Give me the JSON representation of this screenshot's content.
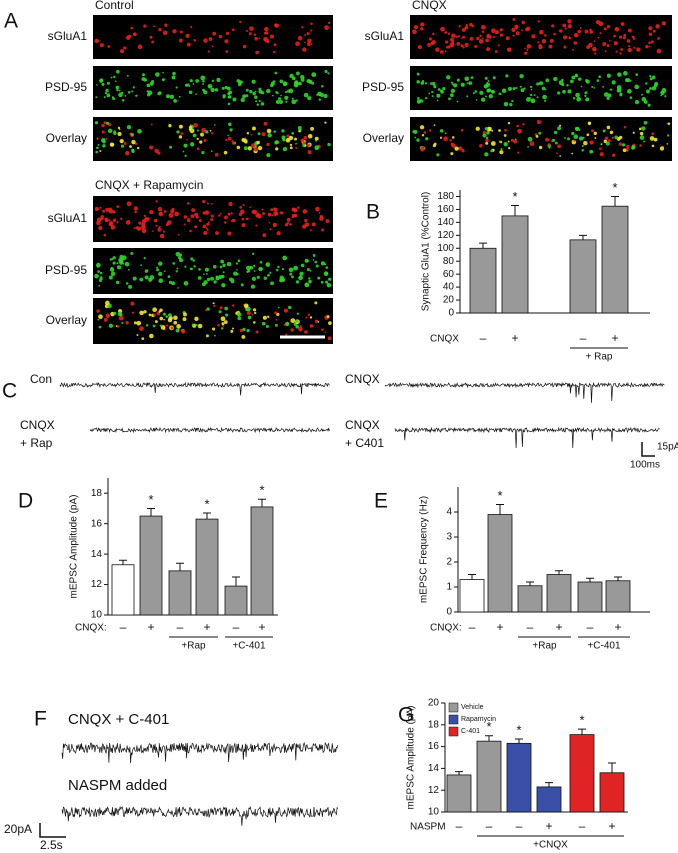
{
  "panel_letters": [
    "A",
    "B",
    "C",
    "D",
    "E",
    "F",
    "G"
  ],
  "panel_a": {
    "conditions": [
      {
        "title": "Control",
        "rows": [
          "sGluA1",
          "PSD-95",
          "Overlay"
        ]
      },
      {
        "title": "CNQX",
        "rows": [
          "sGluA1",
          "PSD-95",
          "Overlay"
        ]
      },
      {
        "title": "CNQX + Rapamycin",
        "rows": [
          "sGluA1",
          "PSD-95",
          "Overlay"
        ]
      }
    ]
  },
  "panel_c": {
    "traces": [
      [
        "Con"
      ],
      [
        "CNQX"
      ],
      [
        "CNQX",
        "+ Rap"
      ],
      [
        "CNQX",
        "+ C401"
      ]
    ],
    "scale_y": "15pA",
    "scale_x": "100ms"
  },
  "panel_f": {
    "traces": [
      "CNQX + C-401",
      "NASPM added"
    ],
    "scale_y": "20pA",
    "scale_x": "2.5s"
  },
  "chart_data": [
    {
      "type": "bar",
      "y_label": "Synaptic GluA1 (%Control)",
      "x_label": "CNQX",
      "categories": [
        "–",
        "+",
        "–",
        "+"
      ],
      "values": [
        100,
        150,
        113,
        165
      ],
      "errors": [
        8,
        16,
        7,
        15
      ],
      "stars": [
        null,
        "*",
        null,
        "*"
      ],
      "colors": [
        "#999999",
        "#999999",
        "#999999",
        "#999999"
      ],
      "bracket_labels": [
        "+ Rap"
      ],
      "ylim": [
        0,
        190
      ],
      "yticks": [
        0,
        20,
        40,
        60,
        80,
        100,
        120,
        140,
        160,
        180
      ]
    },
    {
      "type": "bar",
      "y_label": "mEPSC Amplitude (pA)",
      "x_label": "CNQX:",
      "categories": [
        "–",
        "+",
        "–",
        "+",
        "–",
        "+"
      ],
      "values": [
        13.3,
        16.5,
        12.9,
        16.3,
        11.9,
        17.1
      ],
      "errors": [
        0.3,
        0.5,
        0.5,
        0.4,
        0.6,
        0.5
      ],
      "stars": [
        null,
        "*",
        null,
        "*",
        null,
        "*"
      ],
      "colors": [
        "#ffffff",
        "#999999",
        "#999999",
        "#999999",
        "#999999",
        "#999999"
      ],
      "bracket_labels": [
        "+Rap",
        "+C-401"
      ],
      "ylim": [
        10,
        19
      ],
      "yticks": [
        10,
        12,
        14,
        16,
        18
      ]
    },
    {
      "type": "bar",
      "y_label": "mEPSC Frequency (Hz)",
      "x_label": "CNQX:",
      "categories": [
        "–",
        "+",
        "–",
        "+",
        "–",
        "+"
      ],
      "values": [
        1.3,
        3.9,
        1.05,
        1.5,
        1.2,
        1.25
      ],
      "errors": [
        0.2,
        0.4,
        0.15,
        0.15,
        0.15,
        0.15
      ],
      "stars": [
        null,
        "*",
        null,
        null,
        null,
        null
      ],
      "colors": [
        "#ffffff",
        "#999999",
        "#999999",
        "#999999",
        "#999999",
        "#999999"
      ],
      "bracket_labels": [
        "+Rap",
        "+C-401"
      ],
      "ylim": [
        0,
        5
      ],
      "yticks": [
        0,
        1,
        2,
        3,
        4
      ]
    },
    {
      "type": "bar",
      "y_label": "mEPSC Amplitude (pA)",
      "x_label": "NASPM",
      "categories": [
        "–",
        "–",
        "–",
        "+",
        "–",
        "+"
      ],
      "values": [
        13.4,
        16.5,
        16.3,
        12.3,
        17.1,
        13.6
      ],
      "errors": [
        0.3,
        0.5,
        0.4,
        0.4,
        0.5,
        0.9
      ],
      "stars": [
        null,
        "*",
        "*",
        null,
        "*",
        null
      ],
      "colors": [
        "#999999",
        "#999999",
        "#3a4fa8",
        "#3a4fa8",
        "#e02424",
        "#e02424"
      ],
      "legend": [
        {
          "name": "Vehicle",
          "color": "#999999"
        },
        {
          "name": "Rapamycin",
          "color": "#3a4fa8"
        },
        {
          "name": "C-401",
          "color": "#e02424"
        }
      ],
      "bracket_labels": [
        "+CNQX"
      ],
      "ylim": [
        10,
        20
      ],
      "yticks": [
        10,
        12,
        14,
        16,
        18,
        20
      ]
    }
  ]
}
